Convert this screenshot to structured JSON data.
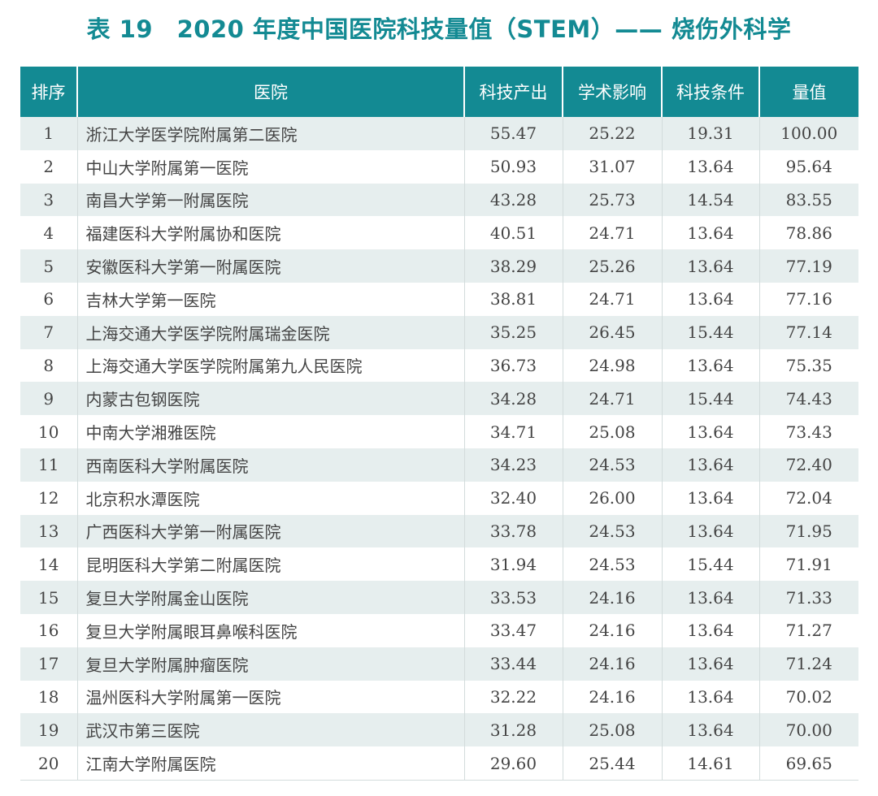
{
  "title": "表 19　2020 年度中国医院科技量值（STEM）—— 烧伤外科学",
  "header": {
    "rank": "排序",
    "hospital": "医院",
    "output": "科技产出",
    "impact": "学术影响",
    "conditions": "科技条件",
    "value": "量值"
  },
  "rows": [
    {
      "rank": "1",
      "hospital": "浙江大学医学院附属第二医院",
      "output": "55.47",
      "impact": "25.22",
      "conditions": "19.31",
      "value": "100.00"
    },
    {
      "rank": "2",
      "hospital": "中山大学附属第一医院",
      "output": "50.93",
      "impact": "31.07",
      "conditions": "13.64",
      "value": "95.64"
    },
    {
      "rank": "3",
      "hospital": "南昌大学第一附属医院",
      "output": "43.28",
      "impact": "25.73",
      "conditions": "14.54",
      "value": "83.55"
    },
    {
      "rank": "4",
      "hospital": "福建医科大学附属协和医院",
      "output": "40.51",
      "impact": "24.71",
      "conditions": "13.64",
      "value": "78.86"
    },
    {
      "rank": "5",
      "hospital": "安徽医科大学第一附属医院",
      "output": "38.29",
      "impact": "25.26",
      "conditions": "13.64",
      "value": "77.19"
    },
    {
      "rank": "6",
      "hospital": "吉林大学第一医院",
      "output": "38.81",
      "impact": "24.71",
      "conditions": "13.64",
      "value": "77.16"
    },
    {
      "rank": "7",
      "hospital": "上海交通大学医学院附属瑞金医院",
      "output": "35.25",
      "impact": "26.45",
      "conditions": "15.44",
      "value": "77.14"
    },
    {
      "rank": "8",
      "hospital": "上海交通大学医学院附属第九人民医院",
      "output": "36.73",
      "impact": "24.98",
      "conditions": "13.64",
      "value": "75.35"
    },
    {
      "rank": "9",
      "hospital": "内蒙古包钢医院",
      "output": "34.28",
      "impact": "24.71",
      "conditions": "15.44",
      "value": "74.43"
    },
    {
      "rank": "10",
      "hospital": "中南大学湘雅医院",
      "output": "34.71",
      "impact": "25.08",
      "conditions": "13.64",
      "value": "73.43"
    },
    {
      "rank": "11",
      "hospital": "西南医科大学附属医院",
      "output": "34.23",
      "impact": "24.53",
      "conditions": "13.64",
      "value": "72.40"
    },
    {
      "rank": "12",
      "hospital": "北京积水潭医院",
      "output": "32.40",
      "impact": "26.00",
      "conditions": "13.64",
      "value": "72.04"
    },
    {
      "rank": "13",
      "hospital": "广西医科大学第一附属医院",
      "output": "33.78",
      "impact": "24.53",
      "conditions": "13.64",
      "value": "71.95"
    },
    {
      "rank": "14",
      "hospital": "昆明医科大学第二附属医院",
      "output": "31.94",
      "impact": "24.53",
      "conditions": "15.44",
      "value": "71.91"
    },
    {
      "rank": "15",
      "hospital": "复旦大学附属金山医院",
      "output": "33.53",
      "impact": "24.16",
      "conditions": "13.64",
      "value": "71.33"
    },
    {
      "rank": "16",
      "hospital": "复旦大学附属眼耳鼻喉科医院",
      "output": "33.47",
      "impact": "24.16",
      "conditions": "13.64",
      "value": "71.27"
    },
    {
      "rank": "17",
      "hospital": "复旦大学附属肿瘤医院",
      "output": "33.44",
      "impact": "24.16",
      "conditions": "13.64",
      "value": "71.24"
    },
    {
      "rank": "18",
      "hospital": "温州医科大学附属第一医院",
      "output": "32.22",
      "impact": "24.16",
      "conditions": "13.64",
      "value": "70.02"
    },
    {
      "rank": "19",
      "hospital": "武汉市第三医院",
      "output": "31.28",
      "impact": "25.08",
      "conditions": "13.64",
      "value": "70.00"
    },
    {
      "rank": "20",
      "hospital": "江南大学附属医院",
      "output": "29.60",
      "impact": "25.44",
      "conditions": "14.61",
      "value": "69.65"
    }
  ]
}
